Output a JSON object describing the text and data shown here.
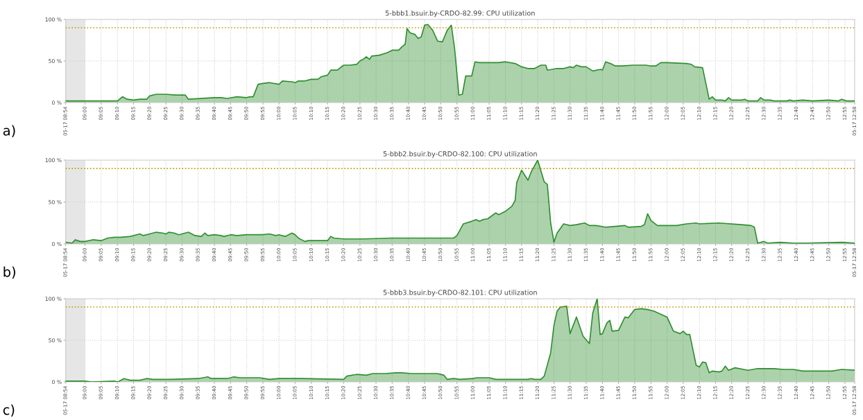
{
  "chart_data": [
    {
      "type": "area",
      "title": "5-bbb1.bsuir.by-CRDO-82.99: CPU utilization",
      "annotations": [
        "a)"
      ],
      "grid": true,
      "xlim": [
        8.9,
        12.967
      ],
      "ylim": [
        0,
        100
      ],
      "yticks": [
        {
          "value": 0,
          "label": "0 %"
        },
        {
          "value": 50,
          "label": "50 %"
        },
        {
          "value": 100,
          "label": "100 %"
        }
      ],
      "xticks": [
        {
          "value": 8.9,
          "label": "05-17 08:54"
        },
        {
          "value": 9.0,
          "label": "09:00"
        },
        {
          "value": 9.083,
          "label": "09:05"
        },
        {
          "value": 9.167,
          "label": "09:10"
        },
        {
          "value": 9.25,
          "label": "09:15"
        },
        {
          "value": 9.333,
          "label": "09:20"
        },
        {
          "value": 9.417,
          "label": "09:25"
        },
        {
          "value": 9.5,
          "label": "09:30"
        },
        {
          "value": 9.583,
          "label": "09:35"
        },
        {
          "value": 9.667,
          "label": "09:40"
        },
        {
          "value": 9.75,
          "label": "09:45"
        },
        {
          "value": 9.833,
          "label": "09:50"
        },
        {
          "value": 9.917,
          "label": "09:55"
        },
        {
          "value": 10.0,
          "label": "10:00"
        },
        {
          "value": 10.083,
          "label": "10:05"
        },
        {
          "value": 10.167,
          "label": "10:10"
        },
        {
          "value": 10.25,
          "label": "10:15"
        },
        {
          "value": 10.333,
          "label": "10:20"
        },
        {
          "value": 10.417,
          "label": "10:25"
        },
        {
          "value": 10.5,
          "label": "10:30"
        },
        {
          "value": 10.583,
          "label": "10:35"
        },
        {
          "value": 10.667,
          "label": "10:40"
        },
        {
          "value": 10.75,
          "label": "10:45"
        },
        {
          "value": 10.833,
          "label": "10:50"
        },
        {
          "value": 10.917,
          "label": "10:55"
        },
        {
          "value": 11.0,
          "label": "11:00"
        },
        {
          "value": 11.083,
          "label": "11:05"
        },
        {
          "value": 11.167,
          "label": "11:10"
        },
        {
          "value": 11.25,
          "label": "11:15"
        },
        {
          "value": 11.333,
          "label": "11:20"
        },
        {
          "value": 11.417,
          "label": "11:25"
        },
        {
          "value": 11.5,
          "label": "11:30"
        },
        {
          "value": 11.583,
          "label": "11:35"
        },
        {
          "value": 11.667,
          "label": "11:40"
        },
        {
          "value": 11.75,
          "label": "11:45"
        },
        {
          "value": 11.833,
          "label": "11:50"
        },
        {
          "value": 11.917,
          "label": "11:55"
        },
        {
          "value": 12.0,
          "label": "12:00"
        },
        {
          "value": 12.083,
          "label": "12:05"
        },
        {
          "value": 12.167,
          "label": "12:10"
        },
        {
          "value": 12.25,
          "label": "12:15"
        },
        {
          "value": 12.333,
          "label": "12:20"
        },
        {
          "value": 12.417,
          "label": "12:25"
        },
        {
          "value": 12.5,
          "label": "12:30"
        },
        {
          "value": 12.583,
          "label": "12:35"
        },
        {
          "value": 12.667,
          "label": "12:40"
        },
        {
          "value": 12.75,
          "label": "12:45"
        },
        {
          "value": 12.833,
          "label": "12:50"
        },
        {
          "value": 12.917,
          "label": "12:55"
        },
        {
          "value": 12.967,
          "label": "05-17 12:58"
        }
      ],
      "ref_lines": [
        {
          "axis": "y",
          "value": 90,
          "color": "#c89600",
          "line_style": "dotted"
        }
      ],
      "bands": [
        {
          "axis": "x",
          "from": 8.9,
          "to": 9.0,
          "color": "#e6e6e6"
        }
      ],
      "series": [
        {
          "color": "#2f8f2f",
          "x": [
            8.9,
            9.0,
            9.167,
            9.193,
            9.217,
            9.25,
            9.283,
            9.317,
            9.333,
            9.367,
            9.417,
            9.467,
            9.517,
            9.533,
            9.667,
            9.7,
            9.733,
            9.783,
            9.833,
            9.85,
            9.867,
            9.892,
            9.917,
            9.95,
            10.0,
            10.017,
            10.067,
            10.083,
            10.1,
            10.133,
            10.167,
            10.2,
            10.217,
            10.25,
            10.267,
            10.3,
            10.333,
            10.367,
            10.4,
            10.417,
            10.433,
            10.45,
            10.467,
            10.478,
            10.517,
            10.558,
            10.583,
            10.617,
            10.633,
            10.65,
            10.66,
            10.675,
            10.7,
            10.717,
            10.733,
            10.75,
            10.767,
            10.792,
            10.817,
            10.842,
            10.867,
            10.888,
            10.905,
            10.927,
            10.945,
            10.962,
            10.993,
            11.01,
            11.033,
            11.133,
            11.167,
            11.217,
            11.25,
            11.283,
            11.317,
            11.35,
            11.375,
            11.383,
            11.433,
            11.467,
            11.5,
            11.517,
            11.533,
            11.558,
            11.583,
            11.617,
            11.658,
            11.667,
            11.683,
            11.708,
            11.733,
            11.767,
            11.825,
            11.892,
            11.917,
            11.942,
            11.967,
            12.0,
            12.1,
            12.125,
            12.142,
            12.183,
            12.217,
            12.233,
            12.25,
            12.283,
            12.3,
            12.317,
            12.333,
            12.383,
            12.4,
            12.417,
            12.467,
            12.483,
            12.5,
            12.533,
            12.55,
            12.617,
            12.633,
            12.65,
            12.7,
            12.75,
            12.833,
            12.883,
            12.9,
            12.925,
            12.967
          ],
          "values": [
            2,
            2,
            2,
            7,
            4,
            3,
            4,
            4,
            8,
            10,
            10,
            9,
            9,
            4,
            6,
            6,
            5,
            7,
            6,
            7,
            7,
            22,
            23,
            24,
            22,
            26,
            25,
            24,
            26,
            26,
            28,
            28,
            31,
            33,
            39,
            39,
            45,
            45,
            46,
            50,
            52,
            55,
            52,
            56,
            57,
            60,
            63,
            63,
            67,
            70,
            89,
            84,
            82,
            77,
            79,
            93,
            94,
            87,
            74,
            73,
            87,
            93,
            65,
            9,
            10,
            32,
            32,
            49,
            48,
            48,
            49,
            47,
            43,
            41,
            41,
            45,
            45,
            39,
            41,
            41,
            43,
            42,
            45,
            43,
            43,
            38,
            40,
            39,
            49,
            47,
            44,
            44,
            45,
            45,
            44,
            44,
            48,
            48,
            47,
            46,
            43,
            42,
            4,
            7,
            3,
            3,
            2,
            6,
            3,
            3,
            4,
            2,
            2,
            6,
            3,
            3,
            2,
            2,
            3,
            2,
            3,
            2,
            3,
            2,
            4,
            2,
            2
          ]
        }
      ]
    },
    {
      "type": "area",
      "title": "5-bbb2.bsuir.by-CRDO-82.100: CPU utilization",
      "annotations": [
        "b)"
      ],
      "grid": true,
      "xlim": [
        8.9,
        12.967
      ],
      "ylim": [
        0,
        100
      ],
      "yticks": [
        {
          "value": 0,
          "label": "0 %"
        },
        {
          "value": 50,
          "label": "50 %"
        },
        {
          "value": 100,
          "label": "100 %"
        }
      ],
      "xticks": [
        {
          "value": 8.9,
          "label": "05-17 08:54"
        },
        {
          "value": 9.0,
          "label": "09:00"
        },
        {
          "value": 9.083,
          "label": "09:05"
        },
        {
          "value": 9.167,
          "label": "09:10"
        },
        {
          "value": 9.25,
          "label": "09:15"
        },
        {
          "value": 9.333,
          "label": "09:20"
        },
        {
          "value": 9.417,
          "label": "09:25"
        },
        {
          "value": 9.5,
          "label": "09:30"
        },
        {
          "value": 9.583,
          "label": "09:35"
        },
        {
          "value": 9.667,
          "label": "09:40"
        },
        {
          "value": 9.75,
          "label": "09:45"
        },
        {
          "value": 9.833,
          "label": "09:50"
        },
        {
          "value": 9.917,
          "label": "09:55"
        },
        {
          "value": 10.0,
          "label": "10:00"
        },
        {
          "value": 10.083,
          "label": "10:05"
        },
        {
          "value": 10.167,
          "label": "10:10"
        },
        {
          "value": 10.25,
          "label": "10:15"
        },
        {
          "value": 10.333,
          "label": "10:20"
        },
        {
          "value": 10.417,
          "label": "10:25"
        },
        {
          "value": 10.5,
          "label": "10:30"
        },
        {
          "value": 10.583,
          "label": "10:35"
        },
        {
          "value": 10.667,
          "label": "10:40"
        },
        {
          "value": 10.75,
          "label": "10:45"
        },
        {
          "value": 10.833,
          "label": "10:50"
        },
        {
          "value": 10.917,
          "label": "10:55"
        },
        {
          "value": 11.0,
          "label": "11:00"
        },
        {
          "value": 11.083,
          "label": "11:05"
        },
        {
          "value": 11.167,
          "label": "11:10"
        },
        {
          "value": 11.25,
          "label": "11:15"
        },
        {
          "value": 11.333,
          "label": "11:20"
        },
        {
          "value": 11.417,
          "label": "11:25"
        },
        {
          "value": 11.5,
          "label": "11:30"
        },
        {
          "value": 11.583,
          "label": "11:35"
        },
        {
          "value": 11.667,
          "label": "11:40"
        },
        {
          "value": 11.75,
          "label": "11:45"
        },
        {
          "value": 11.833,
          "label": "11:50"
        },
        {
          "value": 11.917,
          "label": "11:55"
        },
        {
          "value": 12.0,
          "label": "12:00"
        },
        {
          "value": 12.083,
          "label": "12:05"
        },
        {
          "value": 12.167,
          "label": "12:10"
        },
        {
          "value": 12.25,
          "label": "12:15"
        },
        {
          "value": 12.333,
          "label": "12:20"
        },
        {
          "value": 12.417,
          "label": "12:25"
        },
        {
          "value": 12.5,
          "label": "12:30"
        },
        {
          "value": 12.583,
          "label": "12:35"
        },
        {
          "value": 12.667,
          "label": "12:40"
        },
        {
          "value": 12.75,
          "label": "12:45"
        },
        {
          "value": 12.833,
          "label": "12:50"
        },
        {
          "value": 12.917,
          "label": "12:55"
        },
        {
          "value": 12.967,
          "label": "05-17 12:58"
        }
      ],
      "ref_lines": [
        {
          "axis": "y",
          "value": 90,
          "color": "#c89600",
          "line_style": "dotted"
        }
      ],
      "bands": [
        {
          "axis": "x",
          "from": 8.9,
          "to": 9.0,
          "color": "#e6e6e6"
        }
      ],
      "series": [
        {
          "color": "#2f8f2f",
          "x": [
            8.9,
            8.933,
            8.95,
            8.975,
            9.0,
            9.04,
            9.083,
            9.117,
            9.15,
            9.183,
            9.233,
            9.283,
            9.3,
            9.333,
            9.367,
            9.4,
            9.417,
            9.433,
            9.46,
            9.483,
            9.533,
            9.567,
            9.6,
            9.617,
            9.633,
            9.667,
            9.7,
            9.717,
            9.75,
            9.783,
            9.833,
            9.867,
            9.917,
            9.95,
            9.983,
            10.0,
            10.033,
            10.067,
            10.083,
            10.1,
            10.133,
            10.15,
            10.217,
            10.25,
            10.267,
            10.283,
            10.333,
            10.433,
            10.583,
            10.75,
            10.9,
            10.917,
            10.95,
            10.992,
            11.017,
            11.033,
            11.05,
            11.075,
            11.117,
            11.133,
            11.167,
            11.2,
            11.217,
            11.225,
            11.25,
            11.283,
            11.3,
            11.333,
            11.367,
            11.383,
            11.4,
            11.417,
            11.433,
            11.467,
            11.5,
            11.533,
            11.575,
            11.6,
            11.633,
            11.683,
            11.733,
            11.783,
            11.8,
            11.867,
            11.883,
            11.9,
            11.917,
            11.95,
            11.983,
            12.05,
            12.1,
            12.15,
            12.167,
            12.267,
            12.383,
            12.433,
            12.45,
            12.467,
            12.5,
            12.517,
            12.583,
            12.65,
            12.717,
            12.9,
            12.967
          ],
          "values": [
            2,
            1,
            5,
            3,
            3,
            5,
            4,
            7,
            8,
            8,
            9,
            12,
            10,
            12,
            14,
            13,
            12,
            14,
            13,
            11,
            14,
            10,
            9,
            13,
            10,
            11,
            10,
            9,
            11,
            10,
            11,
            11,
            11,
            12,
            10,
            11,
            9,
            13,
            11,
            7,
            3,
            4,
            4,
            4,
            9,
            7,
            6,
            6,
            7,
            7,
            7,
            10,
            24,
            27,
            29,
            27,
            29,
            30,
            37,
            35,
            39,
            45,
            52,
            73,
            88,
            76,
            86,
            100,
            74,
            71,
            25,
            2,
            13,
            24,
            22,
            23,
            25,
            22,
            22,
            20,
            21,
            22,
            20,
            21,
            23,
            36,
            28,
            22,
            22,
            22,
            24,
            25,
            24,
            25,
            23,
            22,
            20,
            1,
            3,
            1,
            2,
            1,
            1,
            2,
            1
          ]
        }
      ]
    },
    {
      "type": "area",
      "title": "5-bbb3.bsuir.by-CRDO-82.101: CPU utilization",
      "annotations": [
        "c)"
      ],
      "grid": true,
      "xlim": [
        8.9,
        12.967
      ],
      "ylim": [
        0,
        100
      ],
      "yticks": [
        {
          "value": 0,
          "label": "0 %"
        },
        {
          "value": 50,
          "label": "50 %"
        },
        {
          "value": 100,
          "label": "100 %"
        }
      ],
      "xticks": [
        {
          "value": 8.9,
          "label": "05-17 08:54"
        },
        {
          "value": 9.0,
          "label": "09:00"
        },
        {
          "value": 9.083,
          "label": "09:05"
        },
        {
          "value": 9.167,
          "label": "09:10"
        },
        {
          "value": 9.25,
          "label": "09:15"
        },
        {
          "value": 9.333,
          "label": "09:20"
        },
        {
          "value": 9.417,
          "label": "09:25"
        },
        {
          "value": 9.5,
          "label": "09:30"
        },
        {
          "value": 9.583,
          "label": "09:35"
        },
        {
          "value": 9.667,
          "label": "09:40"
        },
        {
          "value": 9.75,
          "label": "09:45"
        },
        {
          "value": 9.833,
          "label": "09:50"
        },
        {
          "value": 9.917,
          "label": "09:55"
        },
        {
          "value": 10.0,
          "label": "10:00"
        },
        {
          "value": 10.083,
          "label": "10:05"
        },
        {
          "value": 10.167,
          "label": "10:10"
        },
        {
          "value": 10.25,
          "label": "10:15"
        },
        {
          "value": 10.333,
          "label": "10:20"
        },
        {
          "value": 10.417,
          "label": "10:25"
        },
        {
          "value": 10.5,
          "label": "10:30"
        },
        {
          "value": 10.583,
          "label": "10:35"
        },
        {
          "value": 10.667,
          "label": "10:40"
        },
        {
          "value": 10.75,
          "label": "10:45"
        },
        {
          "value": 10.833,
          "label": "10:50"
        },
        {
          "value": 10.917,
          "label": "10:55"
        },
        {
          "value": 11.0,
          "label": "11:00"
        },
        {
          "value": 11.083,
          "label": "11:05"
        },
        {
          "value": 11.167,
          "label": "11:10"
        },
        {
          "value": 11.25,
          "label": "11:15"
        },
        {
          "value": 11.333,
          "label": "11:20"
        },
        {
          "value": 11.417,
          "label": "11:25"
        },
        {
          "value": 11.5,
          "label": "11:30"
        },
        {
          "value": 11.583,
          "label": "11:35"
        },
        {
          "value": 11.667,
          "label": "11:40"
        },
        {
          "value": 11.75,
          "label": "11:45"
        },
        {
          "value": 11.833,
          "label": "11:50"
        },
        {
          "value": 11.917,
          "label": "11:55"
        },
        {
          "value": 12.0,
          "label": "12:00"
        },
        {
          "value": 12.083,
          "label": "12:05"
        },
        {
          "value": 12.167,
          "label": "12:10"
        },
        {
          "value": 12.25,
          "label": "12:15"
        },
        {
          "value": 12.333,
          "label": "12:20"
        },
        {
          "value": 12.417,
          "label": "12:25"
        },
        {
          "value": 12.5,
          "label": "12:30"
        },
        {
          "value": 12.583,
          "label": "12:35"
        },
        {
          "value": 12.667,
          "label": "12:40"
        },
        {
          "value": 12.75,
          "label": "12:45"
        },
        {
          "value": 12.833,
          "label": "12:50"
        },
        {
          "value": 12.917,
          "label": "12:55"
        },
        {
          "value": 12.967,
          "label": "05-17 12:58"
        }
      ],
      "ref_lines": [
        {
          "axis": "y",
          "value": 90,
          "color": "#c89600",
          "line_style": "dotted"
        }
      ],
      "bands": [
        {
          "axis": "x",
          "from": 8.9,
          "to": 9.0,
          "color": "#e6e6e6"
        }
      ],
      "series": [
        {
          "color": "#2f8f2f",
          "x": [
            8.9,
            9.0,
            9.033,
            9.15,
            9.17,
            9.2,
            9.233,
            9.283,
            9.317,
            9.35,
            9.433,
            9.583,
            9.633,
            9.65,
            9.733,
            9.767,
            9.8,
            9.9,
            9.95,
            10.0,
            10.117,
            10.333,
            10.35,
            10.4,
            10.45,
            10.483,
            10.55,
            10.6,
            10.633,
            10.683,
            10.817,
            10.85,
            10.867,
            10.9,
            10.933,
            11.0,
            11.017,
            11.083,
            11.117,
            11.2,
            11.283,
            11.3,
            11.317,
            11.35,
            11.367,
            11.4,
            11.417,
            11.433,
            11.45,
            11.483,
            11.5,
            11.533,
            11.567,
            11.6,
            11.617,
            11.64,
            11.655,
            11.667,
            11.69,
            11.705,
            11.717,
            11.75,
            11.783,
            11.8,
            11.833,
            11.867,
            11.9,
            11.933,
            12.0,
            12.033,
            12.067,
            12.083,
            12.1,
            12.117,
            12.15,
            12.167,
            12.183,
            12.2,
            12.217,
            12.233,
            12.267,
            12.283,
            12.3,
            12.317,
            12.35,
            12.417,
            12.467,
            12.55,
            12.6,
            12.65,
            12.7,
            12.783,
            12.85,
            12.9,
            12.967
          ],
          "values": [
            1,
            1,
            0,
            1,
            0,
            4,
            2,
            2,
            4,
            3,
            3,
            4,
            6,
            4,
            4,
            6,
            5,
            5,
            3,
            4,
            4,
            3,
            7,
            9,
            8,
            10,
            10,
            11,
            11,
            10,
            10,
            8,
            3,
            4,
            3,
            4,
            5,
            5,
            3,
            3,
            3,
            4,
            3,
            3,
            7,
            35,
            68,
            85,
            90,
            91,
            58,
            78,
            55,
            46,
            83,
            100,
            57,
            58,
            71,
            74,
            61,
            62,
            78,
            77,
            87,
            88,
            87,
            85,
            78,
            61,
            58,
            61,
            57,
            57,
            20,
            18,
            24,
            23,
            11,
            13,
            12,
            13,
            19,
            14,
            17,
            14,
            16,
            16,
            15,
            15,
            13,
            13,
            13,
            15,
            14
          ]
        }
      ]
    }
  ]
}
